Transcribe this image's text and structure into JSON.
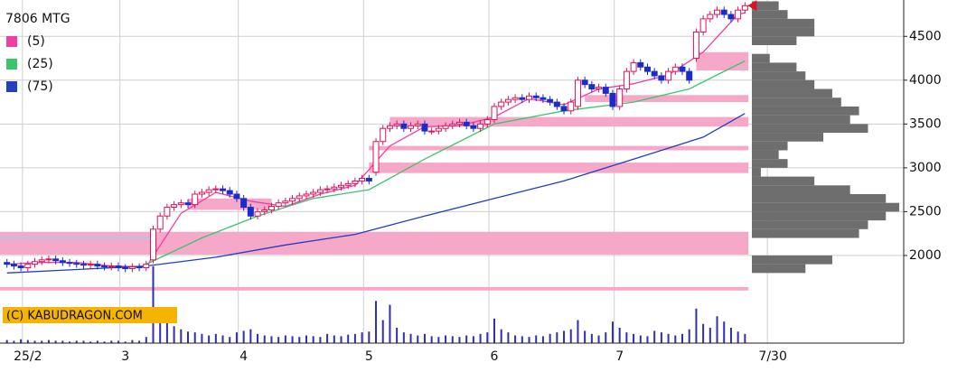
{
  "chart_data": {
    "type": "candlestick",
    "title": "7806 MTG",
    "watermark": "(C) KABUDRAGON.COM",
    "open": [
      1920,
      1900,
      1880,
      1860,
      1900,
      1930,
      1950,
      1960,
      1940,
      1920,
      1910,
      1900,
      1890,
      1900,
      1880,
      1870,
      1880,
      1860,
      1850,
      1870,
      1860,
      1950,
      2300,
      2450,
      2550,
      2580,
      2600,
      2580,
      2700,
      2720,
      2750,
      2760,
      2740,
      2700,
      2650,
      2550,
      2450,
      2500,
      2520,
      2560,
      2600,
      2620,
      2650,
      2680,
      2700,
      2720,
      2750,
      2760,
      2780,
      2800,
      2820,
      2850,
      2880,
      2950,
      3300,
      3450,
      3480,
      3500,
      3450,
      3480,
      3500,
      3420,
      3420,
      3450,
      3480,
      3500,
      3520,
      3480,
      3450,
      3500,
      3550,
      3700,
      3750,
      3780,
      3800,
      3780,
      3820,
      3800,
      3780,
      3750,
      3700,
      3650,
      3700,
      4000,
      3950,
      3900,
      3920,
      3850,
      3700,
      3900,
      4100,
      4200,
      4150,
      4100,
      4050,
      4000,
      4100,
      4150,
      4100,
      4250,
      4550,
      4700,
      4750,
      4800,
      4750,
      4700,
      4800
    ],
    "high": [
      1960,
      1940,
      1920,
      1940,
      1970,
      1990,
      2000,
      2000,
      1980,
      1960,
      1950,
      1940,
      1940,
      1940,
      1920,
      1920,
      1920,
      1900,
      1910,
      1910,
      1940,
      2340,
      2490,
      2590,
      2620,
      2640,
      2640,
      2740,
      2760,
      2790,
      2800,
      2800,
      2780,
      2740,
      2690,
      2590,
      2540,
      2560,
      2600,
      2640,
      2660,
      2690,
      2720,
      2740,
      2760,
      2790,
      2800,
      2820,
      2840,
      2860,
      2890,
      2920,
      2920,
      3340,
      3490,
      3520,
      3540,
      3540,
      3520,
      3540,
      3540,
      3460,
      3490,
      3520,
      3540,
      3560,
      3560,
      3520,
      3540,
      3590,
      3740,
      3790,
      3820,
      3840,
      3840,
      3860,
      3860,
      3840,
      3820,
      3790,
      3740,
      3790,
      4040,
      4040,
      3990,
      3960,
      3960,
      3890,
      3940,
      4140,
      4240,
      4240,
      4190,
      4140,
      4090,
      4140,
      4190,
      4190,
      4140,
      4590,
      4740,
      4790,
      4840,
      4840,
      4790,
      4840,
      4890
    ],
    "low": [
      1860,
      1840,
      1820,
      1820,
      1860,
      1890,
      1910,
      1900,
      1880,
      1870,
      1860,
      1850,
      1850,
      1840,
      1830,
      1830,
      1820,
      1810,
      1810,
      1820,
      1820,
      1910,
      2260,
      2410,
      2510,
      2540,
      2540,
      2540,
      2660,
      2680,
      2710,
      2700,
      2660,
      2610,
      2510,
      2410,
      2410,
      2460,
      2480,
      2520,
      2560,
      2580,
      2610,
      2640,
      2660,
      2680,
      2710,
      2720,
      2740,
      2760,
      2780,
      2810,
      2810,
      2910,
      3260,
      3410,
      3440,
      3410,
      3410,
      3440,
      3380,
      3380,
      3380,
      3410,
      3440,
      3460,
      3440,
      3410,
      3410,
      3460,
      3510,
      3660,
      3710,
      3740,
      3740,
      3740,
      3760,
      3740,
      3710,
      3660,
      3610,
      3610,
      3660,
      3910,
      3860,
      3860,
      3810,
      3660,
      3660,
      3860,
      4060,
      4110,
      4060,
      4010,
      3960,
      3960,
      4060,
      4060,
      3960,
      4210,
      4510,
      4660,
      4710,
      4710,
      4660,
      4660,
      4760
    ],
    "close": [
      1900,
      1880,
      1860,
      1900,
      1930,
      1950,
      1960,
      1940,
      1920,
      1910,
      1900,
      1890,
      1900,
      1880,
      1870,
      1880,
      1860,
      1850,
      1870,
      1860,
      1900,
      2300,
      2450,
      2550,
      2580,
      2600,
      2580,
      2700,
      2720,
      2750,
      2760,
      2740,
      2700,
      2650,
      2550,
      2450,
      2500,
      2520,
      2560,
      2600,
      2620,
      2650,
      2680,
      2700,
      2720,
      2750,
      2760,
      2780,
      2800,
      2820,
      2850,
      2880,
      2850,
      3300,
      3450,
      3480,
      3500,
      3450,
      3480,
      3500,
      3420,
      3420,
      3450,
      3480,
      3500,
      3520,
      3480,
      3450,
      3500,
      3550,
      3700,
      3750,
      3780,
      3800,
      3780,
      3820,
      3800,
      3780,
      3750,
      3700,
      3650,
      3750,
      4000,
      3950,
      3900,
      3920,
      3850,
      3700,
      3900,
      4100,
      4200,
      4150,
      4100,
      4050,
      4000,
      4100,
      4150,
      4100,
      4000,
      4550,
      4700,
      4750,
      4800,
      4750,
      4700,
      4800,
      4850
    ],
    "volume": [
      4,
      3,
      5,
      4,
      3,
      3,
      4,
      3,
      3,
      2,
      3,
      3,
      2,
      3,
      2,
      3,
      3,
      2,
      4,
      3,
      8,
      100,
      45,
      30,
      22,
      18,
      15,
      14,
      12,
      10,
      12,
      10,
      8,
      14,
      16,
      18,
      12,
      10,
      9,
      8,
      10,
      9,
      8,
      10,
      9,
      8,
      12,
      10,
      9,
      11,
      12,
      14,
      15,
      55,
      30,
      50,
      20,
      14,
      12,
      10,
      12,
      9,
      8,
      10,
      9,
      8,
      10,
      9,
      12,
      14,
      32,
      18,
      14,
      10,
      9,
      8,
      10,
      9,
      12,
      14,
      16,
      18,
      30,
      16,
      12,
      10,
      14,
      28,
      20,
      14,
      12,
      10,
      9,
      16,
      14,
      12,
      10,
      12,
      18,
      45,
      25,
      20,
      35,
      28,
      20,
      15,
      12
    ],
    "vlim": [
      0,
      100
    ],
    "up_color": "#e0105a",
    "down_color": "#1c2cc8",
    "volume_color": "#3030a8",
    "series": [
      {
        "name": "(5)",
        "color": "#ee3fa4",
        "x": [
          0,
          5,
          10,
          15,
          20,
          25,
          30,
          35,
          40,
          45,
          50,
          55,
          60,
          65,
          70,
          75,
          80,
          85,
          90,
          95,
          100,
          105,
          106
        ],
        "values": [
          1900,
          1920,
          1920,
          1880,
          1870,
          2480,
          2720,
          2620,
          2560,
          2700,
          2800,
          3250,
          3470,
          3480,
          3580,
          3790,
          3720,
          3900,
          3960,
          4060,
          4320,
          4750,
          4770
        ]
      },
      {
        "name": "(25)",
        "color": "#3cc46c",
        "x": [
          20,
          28,
          36,
          44,
          52,
          60,
          70,
          80,
          90,
          98,
          106
        ],
        "values": [
          1900,
          2200,
          2450,
          2650,
          2750,
          3100,
          3500,
          3650,
          3750,
          3900,
          4220
        ]
      },
      {
        "name": "(75)",
        "color": "#2040c0",
        "x": [
          0,
          10,
          20,
          30,
          40,
          50,
          60,
          70,
          80,
          90,
          100,
          106
        ],
        "values": [
          1800,
          1840,
          1880,
          1980,
          2120,
          2240,
          2450,
          2650,
          2850,
          3100,
          3350,
          3620
        ]
      }
    ],
    "zones": {
      "color": "#f5a8c8",
      "items": [
        {
          "from": 2010,
          "to": 2270,
          "x": [
            -1,
            106.5
          ]
        },
        {
          "from": 1600,
          "to": 1640,
          "x": [
            -1,
            106.5
          ]
        },
        {
          "from": 2940,
          "to": 3060,
          "x": [
            52,
            106.5
          ]
        },
        {
          "from": 3200,
          "to": 3250,
          "x": [
            52,
            106.5
          ]
        },
        {
          "from": 3470,
          "to": 3580,
          "x": [
            55,
            106.5
          ]
        },
        {
          "from": 3750,
          "to": 3830,
          "x": [
            83,
            106.5
          ]
        },
        {
          "from": 4110,
          "to": 4320,
          "x": [
            99,
            106.5
          ]
        },
        {
          "from": 2520,
          "to": 2650,
          "x": [
            26,
            38
          ]
        }
      ]
    },
    "hline": {
      "value": 2200,
      "x": [
        -1,
        21
      ],
      "color": "#a8c8f0"
    },
    "profile": {
      "color": "#6e6e6e",
      "xlim": [
        0,
        170
      ],
      "bins": [
        1800,
        1900,
        2000,
        2100,
        2200,
        2300,
        2400,
        2500,
        2600,
        2700,
        2800,
        2900,
        3000,
        3100,
        3200,
        3300,
        3400,
        3500,
        3600,
        3700,
        3800,
        3900,
        4000,
        4100,
        4200,
        4300,
        4400,
        4500,
        4600,
        4700,
        4800,
        4900
      ],
      "values": [
        60,
        90,
        0,
        0,
        120,
        130,
        150,
        165,
        150,
        110,
        70,
        10,
        40,
        30,
        40,
        80,
        130,
        110,
        120,
        100,
        90,
        70,
        60,
        50,
        20,
        0,
        50,
        70,
        70,
        40,
        30
      ]
    },
    "xlim": [
      -1,
      128.8
    ],
    "ylim": [
      1000,
      4915
    ],
    "xticks": [
      {
        "value": 3,
        "label": "25/2"
      },
      {
        "value": 17,
        "label": "3"
      },
      {
        "value": 34,
        "label": "4"
      },
      {
        "value": 52,
        "label": "5"
      },
      {
        "value": 70,
        "label": "6"
      },
      {
        "value": 88,
        "label": "7"
      },
      {
        "value": 110,
        "label": "7/30"
      }
    ],
    "yticks": [
      2000,
      2500,
      3000,
      3500,
      4000,
      4500
    ],
    "grid": true,
    "marker_color": "#e01020"
  }
}
